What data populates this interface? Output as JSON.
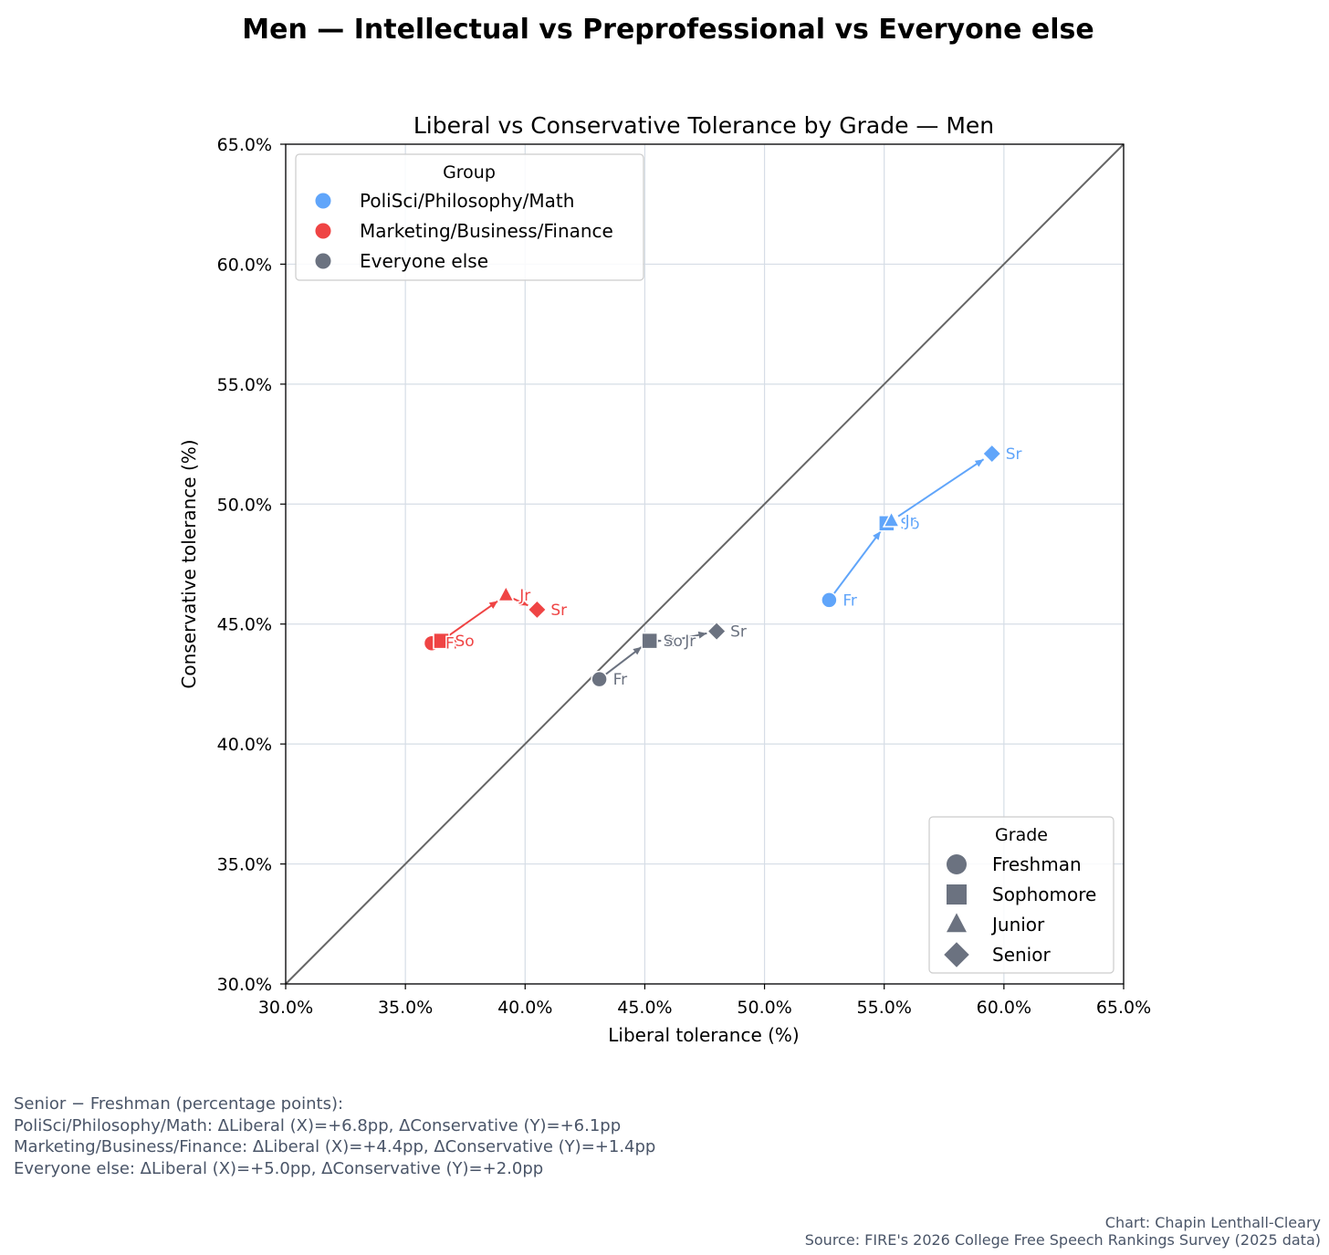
{
  "colors": {
    "intellectual": "#60a5fa",
    "preprofessional": "#ef4444",
    "everyone_else": "#6b7280",
    "diagonal": "#666666",
    "grid": "#d6dde6",
    "footer_text": "#4a5568"
  },
  "chart_data": {
    "type": "scatter",
    "suptitle": "Men — Intellectual vs Preprofessional vs Everyone else",
    "title": "Liberal vs Conservative Tolerance by Grade — Men",
    "xlabel": "Liberal tolerance (%)",
    "ylabel": "Conservative tolerance (%)",
    "xlim": [
      30,
      65
    ],
    "ylim": [
      30,
      65
    ],
    "xticks": [
      30,
      35,
      40,
      45,
      50,
      55,
      60,
      65
    ],
    "yticks": [
      30,
      35,
      40,
      45,
      50,
      55,
      60,
      65
    ],
    "xtick_labels": [
      "30.0%",
      "35.0%",
      "40.0%",
      "45.0%",
      "50.0%",
      "55.0%",
      "60.0%",
      "65.0%"
    ],
    "ytick_labels": [
      "30.0%",
      "35.0%",
      "40.0%",
      "45.0%",
      "50.0%",
      "55.0%",
      "60.0%",
      "65.0%"
    ],
    "grid": true,
    "reference_line": "y = x",
    "series": [
      {
        "name": "PoliSci/Philosophy/Math",
        "key": "intellectual",
        "color": "#60a5fa",
        "points": [
          {
            "grade": "Freshman",
            "label": "Fr",
            "x": 52.7,
            "y": 46.0
          },
          {
            "grade": "Sophomore",
            "label": "So",
            "x": 55.1,
            "y": 49.2
          },
          {
            "grade": "Junior",
            "label": "Jr",
            "x": 55.3,
            "y": 49.3
          },
          {
            "grade": "Senior",
            "label": "Sr",
            "x": 59.5,
            "y": 52.1
          }
        ]
      },
      {
        "name": "Marketing/Business/Finance",
        "key": "preprofessional",
        "color": "#ef4444",
        "points": [
          {
            "grade": "Freshman",
            "label": "Fr",
            "x": 36.1,
            "y": 44.2
          },
          {
            "grade": "Sophomore",
            "label": "So",
            "x": 36.5,
            "y": 44.3
          },
          {
            "grade": "Junior",
            "label": "Jr",
            "x": 39.2,
            "y": 46.2
          },
          {
            "grade": "Senior",
            "label": "Sr",
            "x": 40.5,
            "y": 45.6
          }
        ]
      },
      {
        "name": "Everyone else",
        "key": "everyone_else",
        "color": "#6b7280",
        "points": [
          {
            "grade": "Freshman",
            "label": "Fr",
            "x": 43.1,
            "y": 42.7
          },
          {
            "grade": "Sophomore",
            "label": "So",
            "x": 45.2,
            "y": 44.3
          },
          {
            "grade": "Junior",
            "label": "Jr",
            "x": 46.1,
            "y": 44.3
          },
          {
            "grade": "Senior",
            "label": "Sr",
            "x": 48.0,
            "y": 44.7
          }
        ]
      }
    ],
    "legend_group": {
      "title": "Group",
      "position": "upper-left",
      "entries": [
        "PoliSci/Philosophy/Math",
        "Marketing/Business/Finance",
        "Everyone else"
      ]
    },
    "legend_grade": {
      "title": "Grade",
      "position": "lower-right",
      "entries": [
        {
          "label": "Freshman",
          "marker": "circle"
        },
        {
          "label": "Sophomore",
          "marker": "square"
        },
        {
          "label": "Junior",
          "marker": "triangle"
        },
        {
          "label": "Senior",
          "marker": "diamond"
        }
      ]
    }
  },
  "footnote": {
    "heading": "Senior − Freshman (percentage points):",
    "lines": [
      "PoliSci/Philosophy/Math: ΔLiberal (X)=+6.8pp, ΔConservative (Y)=+6.1pp",
      "Marketing/Business/Finance: ΔLiberal (X)=+4.4pp, ΔConservative (Y)=+1.4pp",
      "Everyone else: ΔLiberal (X)=+5.0pp, ΔConservative (Y)=+2.0pp"
    ]
  },
  "credits": {
    "author": "Chart: Chapin Lenthall-Cleary",
    "source": "Source: FIRE's 2026 College Free Speech Rankings Survey (2025 data)"
  }
}
